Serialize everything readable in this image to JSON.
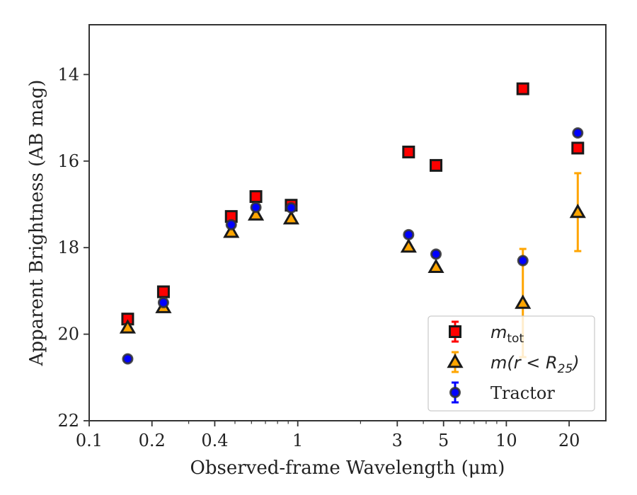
{
  "chart_data": {
    "type": "scatter",
    "title": "",
    "xlabel": "Observed-frame Wavelength (μm)",
    "ylabel": "Apparent Brightness (AB mag)",
    "xscale": "log",
    "xlim": [
      0.1,
      30
    ],
    "ylim": [
      22,
      12.85
    ],
    "y_inverted": true,
    "x_ticks": [
      0.1,
      0.2,
      0.4,
      1,
      3,
      5,
      10,
      20
    ],
    "x_tick_labels": [
      "0.1",
      "0.2",
      "0.4",
      "1",
      "3",
      "5",
      "10",
      "20"
    ],
    "y_ticks": [
      14,
      16,
      18,
      20,
      22
    ],
    "y_tick_labels": [
      "14",
      "16",
      "18",
      "20",
      "22"
    ],
    "grid": false,
    "legend_position": "lower-right",
    "series": [
      {
        "name": "m_tot",
        "marker": "square",
        "fill": "#ff0000",
        "edge": "#1a1a1a",
        "errcolor": "#ff0000",
        "points": [
          {
            "x": 0.153,
            "y": 19.65,
            "err": 0.06
          },
          {
            "x": 0.227,
            "y": 19.02,
            "err": 0.05
          },
          {
            "x": 0.48,
            "y": 17.28,
            "err": 0.04
          },
          {
            "x": 0.63,
            "y": 16.82,
            "err": 0.04
          },
          {
            "x": 0.93,
            "y": 17.02,
            "err": 0.08
          },
          {
            "x": 3.4,
            "y": 15.79,
            "err": 0.03
          },
          {
            "x": 4.6,
            "y": 16.1,
            "err": 0.03
          },
          {
            "x": 12.0,
            "y": 14.33,
            "err": 0.03
          },
          {
            "x": 22.0,
            "y": 15.7,
            "err": 0.03
          }
        ]
      },
      {
        "name": "m(r<R25)",
        "marker": "triangle",
        "fill": "#ffa500",
        "edge": "#1a1a1a",
        "errcolor": "#ffa500",
        "points": [
          {
            "x": 0.153,
            "y": 19.85,
            "err": 0.05
          },
          {
            "x": 0.227,
            "y": 19.38,
            "err": 0.05
          },
          {
            "x": 0.48,
            "y": 17.64,
            "err": 0.03
          },
          {
            "x": 0.63,
            "y": 17.24,
            "err": 0.03
          },
          {
            "x": 0.93,
            "y": 17.33,
            "err": 0.03
          },
          {
            "x": 3.4,
            "y": 17.98,
            "err": 0.03
          },
          {
            "x": 4.6,
            "y": 18.45,
            "err": 0.04
          },
          {
            "x": 12.0,
            "y": 19.28,
            "err": 1.25
          },
          {
            "x": 22.0,
            "y": 17.18,
            "err": 0.9
          }
        ]
      },
      {
        "name": "Tractor",
        "marker": "circle",
        "fill": "#0000ff",
        "edge": "#333333",
        "errcolor": "#0000ff",
        "points": [
          {
            "x": 0.153,
            "y": 20.57,
            "err": 0.05
          },
          {
            "x": 0.227,
            "y": 19.27,
            "err": 0.05
          },
          {
            "x": 0.48,
            "y": 17.47,
            "err": 0.04
          },
          {
            "x": 0.63,
            "y": 17.07,
            "err": 0.04
          },
          {
            "x": 0.93,
            "y": 17.08,
            "err": 0.04
          },
          {
            "x": 3.4,
            "y": 17.7,
            "err": 0.04
          },
          {
            "x": 4.6,
            "y": 18.15,
            "err": 0.04
          },
          {
            "x": 12.0,
            "y": 18.3,
            "err": 0.05
          },
          {
            "x": 22.0,
            "y": 15.35,
            "err": 0.05
          }
        ]
      }
    ],
    "legend": [
      {
        "series": "m_tot",
        "label_main": "m",
        "label_sub": "tot",
        "label_rest": ""
      },
      {
        "series": "m(r<R25)",
        "label_main": "m(r < R",
        "label_sub": "25",
        "label_rest": ")"
      },
      {
        "series": "Tractor",
        "label_main": "Tractor",
        "label_sub": "",
        "label_rest": ""
      }
    ]
  }
}
